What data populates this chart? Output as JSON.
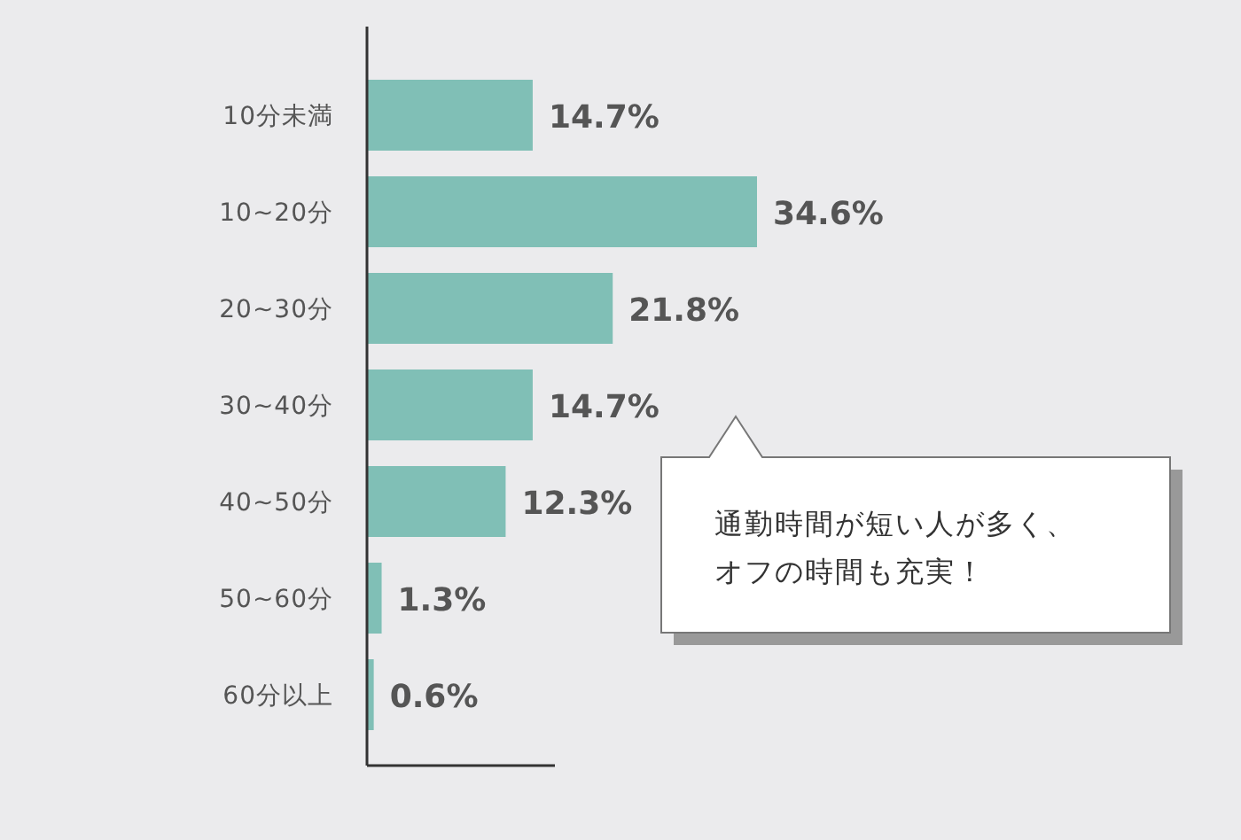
{
  "chart_data": {
    "type": "bar",
    "orientation": "horizontal",
    "categories": [
      "10分未満",
      "10~20分",
      "20~30分",
      "30~40分",
      "40~50分",
      "50~60分",
      "60分以上"
    ],
    "values": [
      14.7,
      34.6,
      21.8,
      14.7,
      12.3,
      1.3,
      0.6
    ],
    "value_labels": [
      "14.7%",
      "34.6%",
      "21.8%",
      "14.7%",
      "12.3%",
      "1.3%",
      "0.6%"
    ],
    "color": "#80bfb6",
    "annotations": [
      "通勤時間が短い人が多く、",
      "オフの時間も充実！"
    ]
  }
}
